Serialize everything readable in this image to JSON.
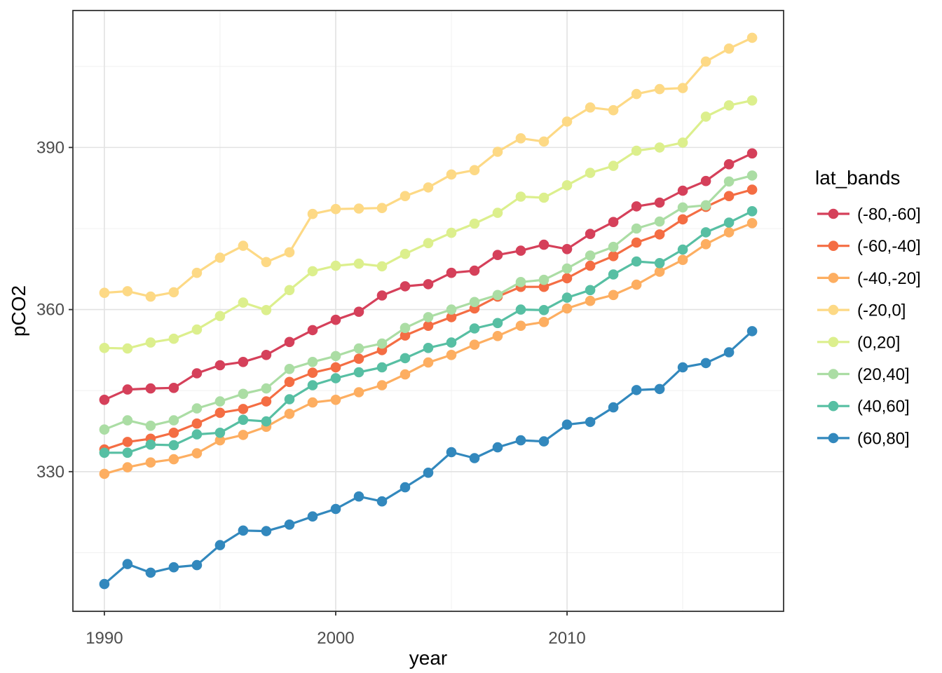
{
  "figure": {
    "background": "#ffffff",
    "panel": {
      "border_color": "#333333",
      "major_grid_color": "#e2e2e2",
      "minor_grid_color": "#f0f0f0",
      "tick_color": "#333333",
      "tick_label_color": "#4d4d4d"
    }
  },
  "chart_data": {
    "type": "line",
    "title": "",
    "xlabel": "year",
    "ylabel": "pCO2",
    "x": [
      1990,
      1991,
      1992,
      1993,
      1994,
      1995,
      1996,
      1997,
      1998,
      1999,
      2000,
      2001,
      2002,
      2003,
      2004,
      2005,
      2006,
      2007,
      2008,
      2009,
      2010,
      2011,
      2012,
      2013,
      2014,
      2015,
      2016,
      2017,
      2018
    ],
    "xlim": [
      1988.64,
      2019.36
    ],
    "ylim": [
      304.15,
      415.35
    ],
    "x_ticks_major": [
      1990,
      2000,
      2010
    ],
    "x_tick_labels": [
      "1990",
      "2000",
      "2010"
    ],
    "x_ticks_minor": [
      1995,
      2005,
      2015
    ],
    "y_ticks_major": [
      330,
      360,
      390
    ],
    "y_tick_labels": [
      "330",
      "360",
      "390"
    ],
    "y_ticks_minor": [
      315,
      345,
      375,
      405
    ],
    "grid": "major+minor",
    "legend": {
      "title": "lat_bands",
      "position": "right"
    },
    "series": [
      {
        "name": "(-80,-60]",
        "color": "#d5405a",
        "values": [
          343.3,
          345.2,
          345.4,
          345.5,
          348.2,
          349.7,
          350.3,
          351.6,
          354.0,
          356.2,
          358.1,
          359.6,
          362.6,
          364.3,
          364.7,
          366.8,
          367.2,
          370.1,
          370.9,
          372.0,
          371.2,
          374.0,
          376.2,
          379.1,
          379.8,
          382.0,
          383.8,
          386.9,
          388.9
        ]
      },
      {
        "name": "(-60,-40]",
        "color": "#f46d43",
        "values": [
          334.1,
          335.5,
          336.1,
          337.2,
          338.9,
          340.9,
          341.6,
          343.0,
          346.6,
          348.3,
          349.3,
          350.9,
          352.5,
          355.2,
          357.0,
          358.6,
          360.2,
          362.4,
          364.2,
          364.2,
          365.8,
          368.1,
          369.9,
          372.4,
          373.9,
          376.7,
          379.0,
          381.0,
          382.2
        ]
      },
      {
        "name": "(-40,-20]",
        "color": "#fdae61",
        "values": [
          329.6,
          330.8,
          331.7,
          332.3,
          333.4,
          335.8,
          336.8,
          338.3,
          340.7,
          342.8,
          343.3,
          344.7,
          346.0,
          348.0,
          350.2,
          351.6,
          353.5,
          355.1,
          357.0,
          357.7,
          360.2,
          361.6,
          362.7,
          364.6,
          367.0,
          369.2,
          372.1,
          374.3,
          376.0
        ]
      },
      {
        "name": "(-20,0]",
        "color": "#fdd985",
        "values": [
          363.1,
          363.4,
          362.4,
          363.2,
          366.8,
          369.6,
          371.8,
          368.8,
          370.6,
          377.7,
          378.6,
          378.7,
          378.8,
          381.0,
          382.6,
          385.0,
          385.8,
          389.2,
          391.7,
          391.1,
          394.8,
          397.4,
          396.9,
          399.9,
          400.8,
          401.0,
          405.9,
          408.3,
          410.3
        ]
      },
      {
        "name": "(0,20]",
        "color": "#dcef8d",
        "values": [
          352.9,
          352.8,
          353.9,
          354.6,
          356.3,
          358.8,
          361.3,
          359.9,
          363.6,
          367.1,
          368.1,
          368.5,
          368.0,
          370.3,
          372.3,
          374.2,
          375.9,
          377.9,
          380.9,
          380.7,
          383.0,
          385.3,
          386.6,
          389.4,
          390.0,
          390.9,
          395.7,
          397.8,
          398.7
        ]
      },
      {
        "name": "(20,40]",
        "color": "#abdda4",
        "values": [
          337.8,
          339.5,
          338.5,
          339.5,
          341.7,
          343.0,
          344.4,
          345.4,
          349.0,
          350.3,
          351.4,
          352.8,
          353.7,
          356.6,
          358.6,
          360.0,
          361.4,
          362.7,
          365.1,
          365.5,
          367.6,
          370.0,
          371.6,
          375.0,
          376.3,
          378.9,
          379.3,
          383.7,
          384.8
        ]
      },
      {
        "name": "(40,60]",
        "color": "#57bfa3",
        "values": [
          333.5,
          333.5,
          335.0,
          334.9,
          336.9,
          337.2,
          339.6,
          339.3,
          343.4,
          346.0,
          347.3,
          348.4,
          349.3,
          351.0,
          352.9,
          353.9,
          356.5,
          357.5,
          360.0,
          359.9,
          362.2,
          363.6,
          366.5,
          368.9,
          368.6,
          371.1,
          374.3,
          376.1,
          378.2
        ]
      },
      {
        "name": "(60,80]",
        "color": "#3288bd",
        "values": [
          309.2,
          312.9,
          311.3,
          312.3,
          312.7,
          316.4,
          319.1,
          319.0,
          320.2,
          321.7,
          323.1,
          325.4,
          324.5,
          327.1,
          329.8,
          333.6,
          332.5,
          334.5,
          335.8,
          335.6,
          338.7,
          339.2,
          341.9,
          345.1,
          345.3,
          349.3,
          350.1,
          352.1,
          356.0
        ]
      }
    ]
  }
}
